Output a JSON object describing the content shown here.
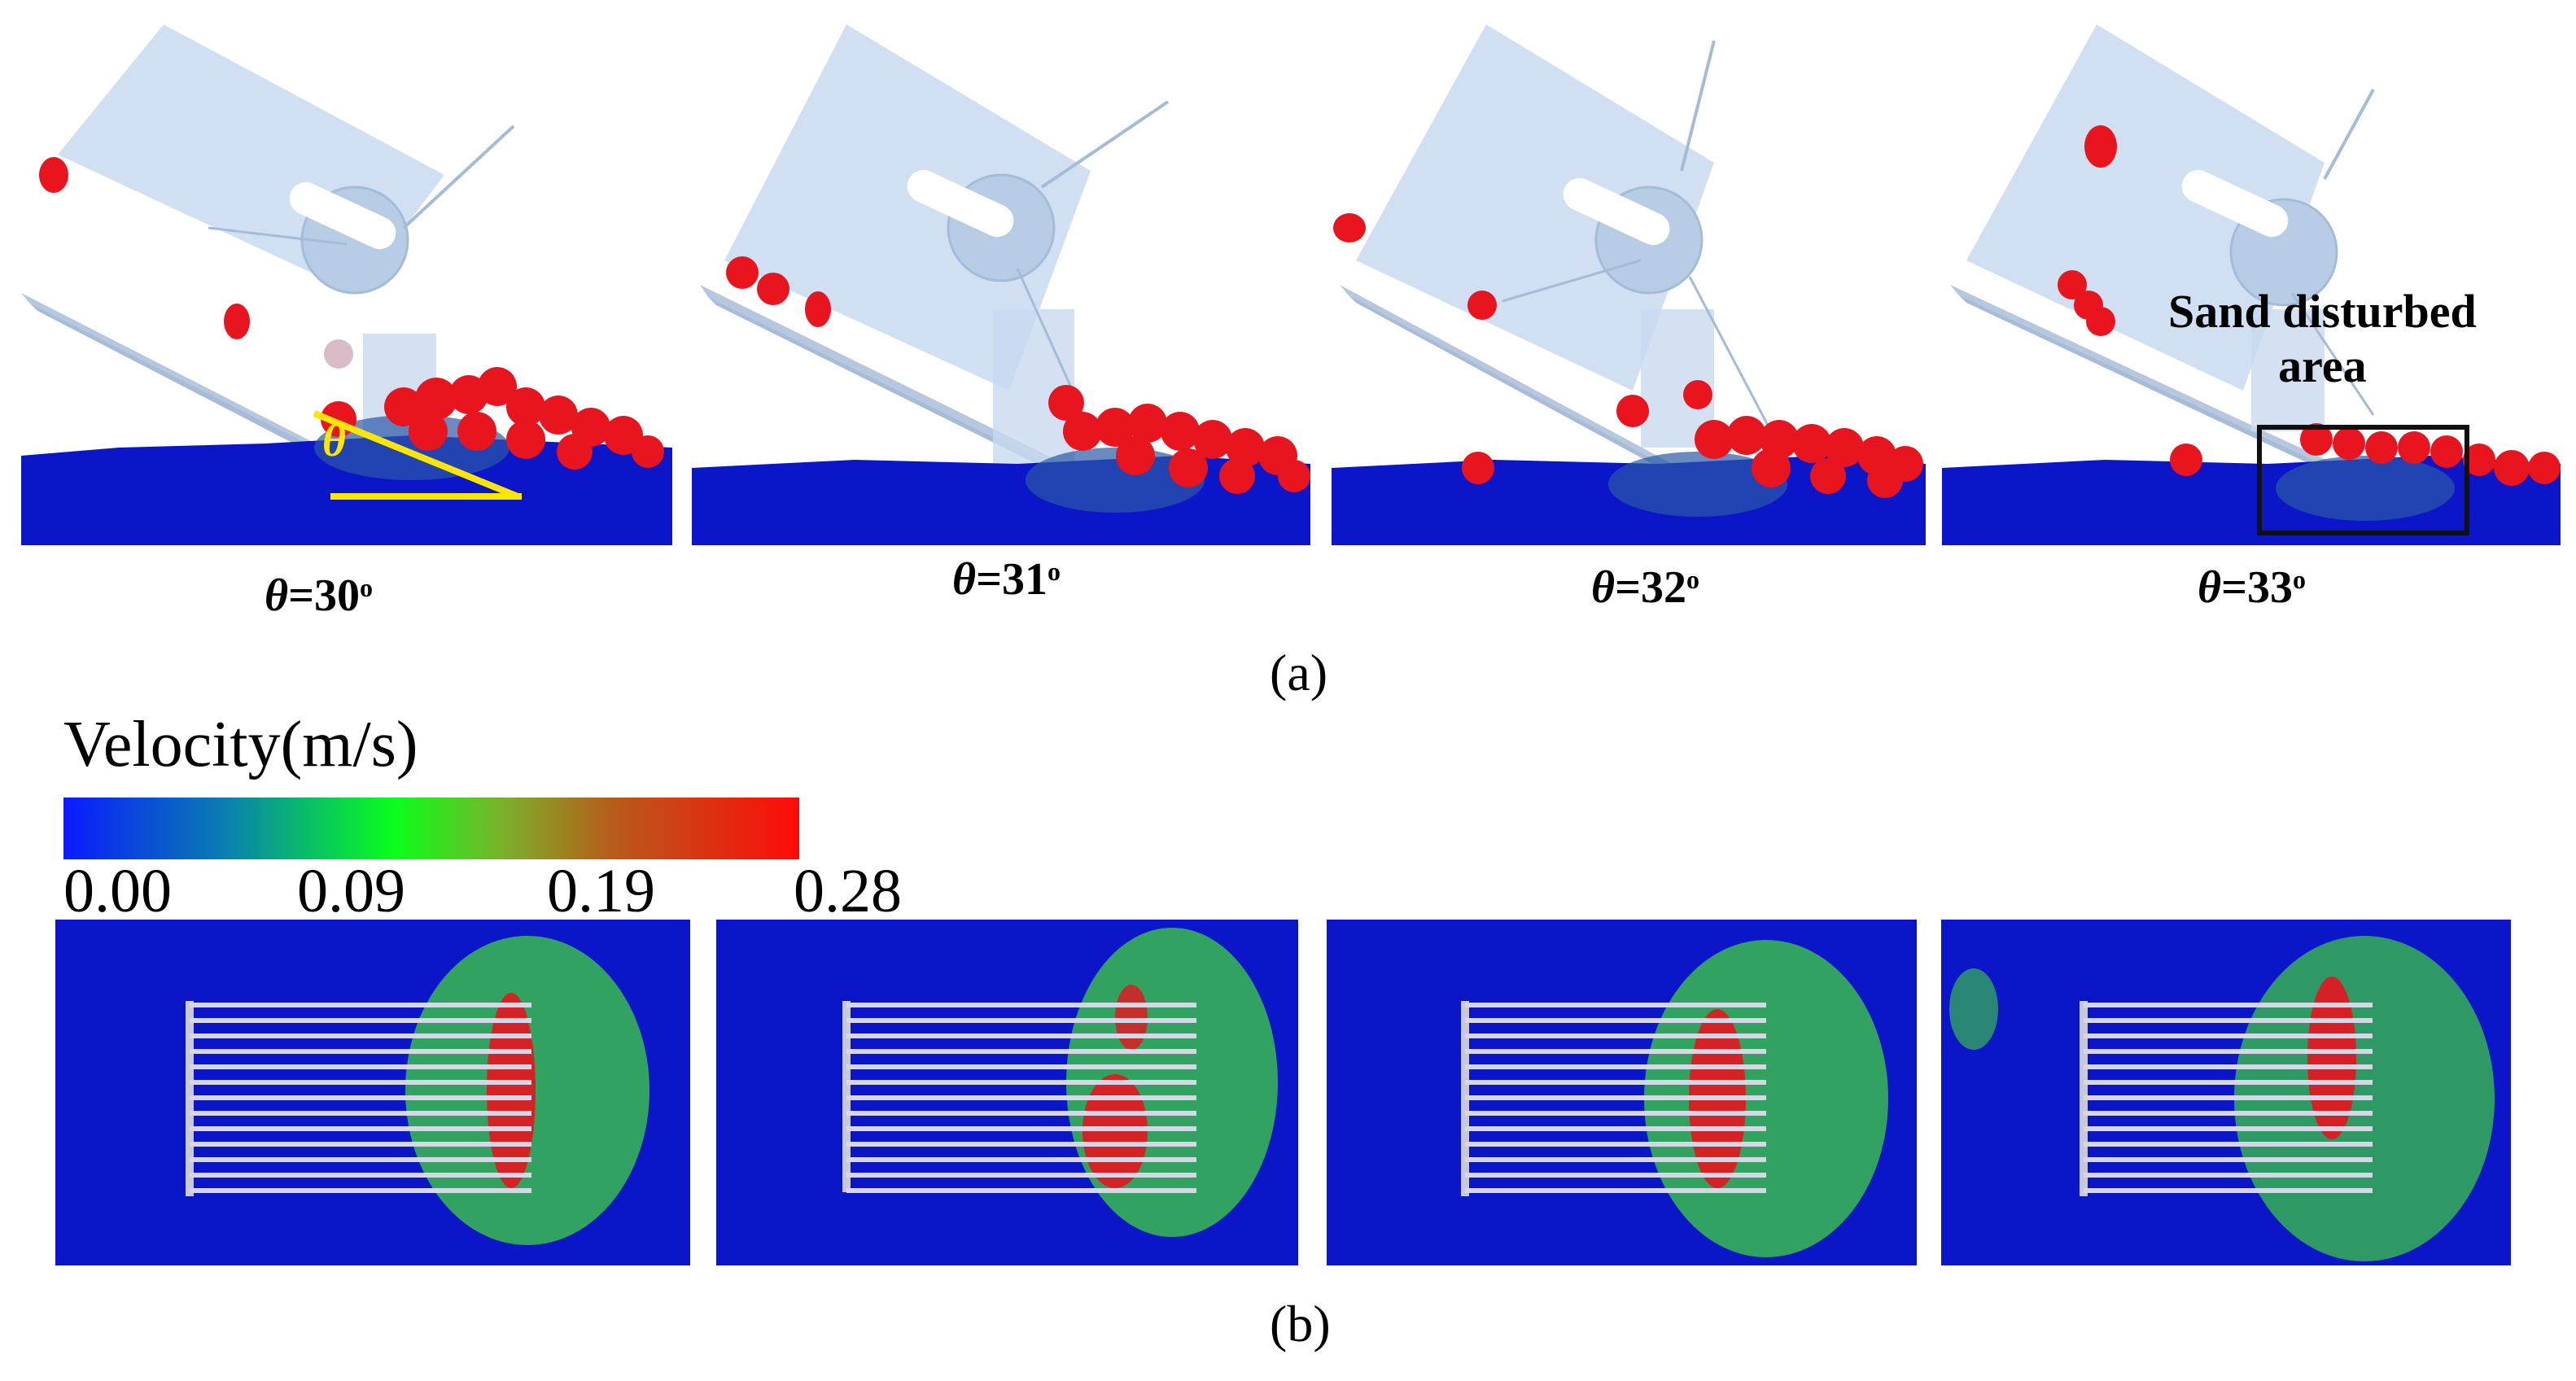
{
  "part_a": {
    "label": "(a)",
    "panels": [
      {
        "theta_symbol": "θ",
        "eq": "=",
        "value": "30",
        "unit": "o"
      },
      {
        "theta_symbol": "θ",
        "eq": "=",
        "value": "31",
        "unit": "o"
      },
      {
        "theta_symbol": "θ",
        "eq": "=",
        "value": "32",
        "unit": "o"
      },
      {
        "theta_symbol": "θ",
        "eq": "=",
        "value": "33",
        "unit": "o"
      }
    ],
    "angle_marker": "θ",
    "annotation_line1": "Sand disturbed",
    "annotation_line2": "area"
  },
  "part_b": {
    "label": "(b)",
    "colorbar": {
      "title": "Velocity(m/s)",
      "ticks": [
        "0.00",
        "0.09",
        "0.19",
        "0.28"
      ]
    }
  },
  "colors": {
    "sand_blue": "#0a16c8",
    "particle_red": "#e8141e",
    "disturbed_green": "#3fd23c",
    "plate": "#c8daf0",
    "angle_yellow": "#ffe600"
  }
}
